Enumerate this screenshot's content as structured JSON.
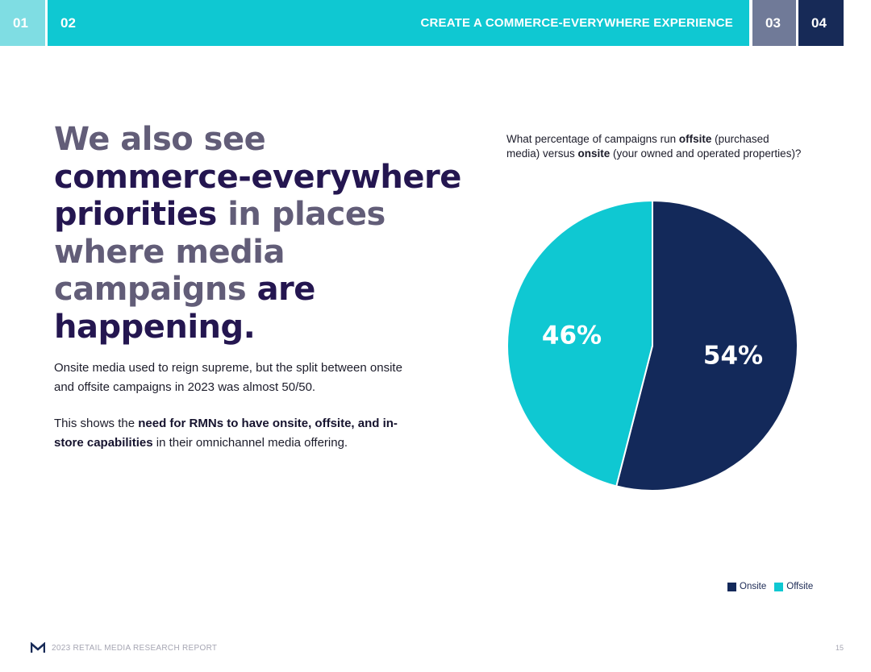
{
  "nav": {
    "tabs": [
      {
        "label": "01",
        "color": "#7fdde3"
      },
      {
        "label": "02",
        "color": "#0fc8d2"
      },
      {
        "label": "03",
        "color": "#707a98"
      },
      {
        "label": "04",
        "color": "#172a57"
      }
    ],
    "section_title": "CREATE A COMMERCE-EVERYWHERE  EXPERIENCE"
  },
  "headline": {
    "part1": "We also see ",
    "part2": "commerce-everywhere priorities",
    "part3": " in places where media campaigns ",
    "part4": "are happening."
  },
  "body": {
    "p1": "Onsite media used to reign supreme, but the split between onsite and offsite campaigns in 2023 was almost 50/50.",
    "p2_prefix": "This shows the ",
    "p2_bold": "need for RMNs to have onsite, offsite, and in-store capabilities",
    "p2_suffix": " in their omnichannel media offering."
  },
  "chart_question": {
    "t1": "What percentage of campaigns run ",
    "b1": "offsite",
    "t2": " (purchased media) versus ",
    "b2": "onsite",
    "t3": " (your owned and operated properties)?"
  },
  "chart_data": {
    "type": "pie",
    "categories": [
      "Onsite",
      "Offsite"
    ],
    "values": [
      54,
      46
    ],
    "data_labels": [
      "54%",
      "46%"
    ],
    "colors": [
      "#13295a",
      "#0fc8d2"
    ],
    "legend_position": "bottom-right",
    "title": "What percentage of campaigns run offsite (purchased media) versus onsite (your owned and operated properties)?"
  },
  "footer": {
    "report": "2023 RETAIL MEDIA RESEARCH REPORT",
    "page": "15"
  }
}
